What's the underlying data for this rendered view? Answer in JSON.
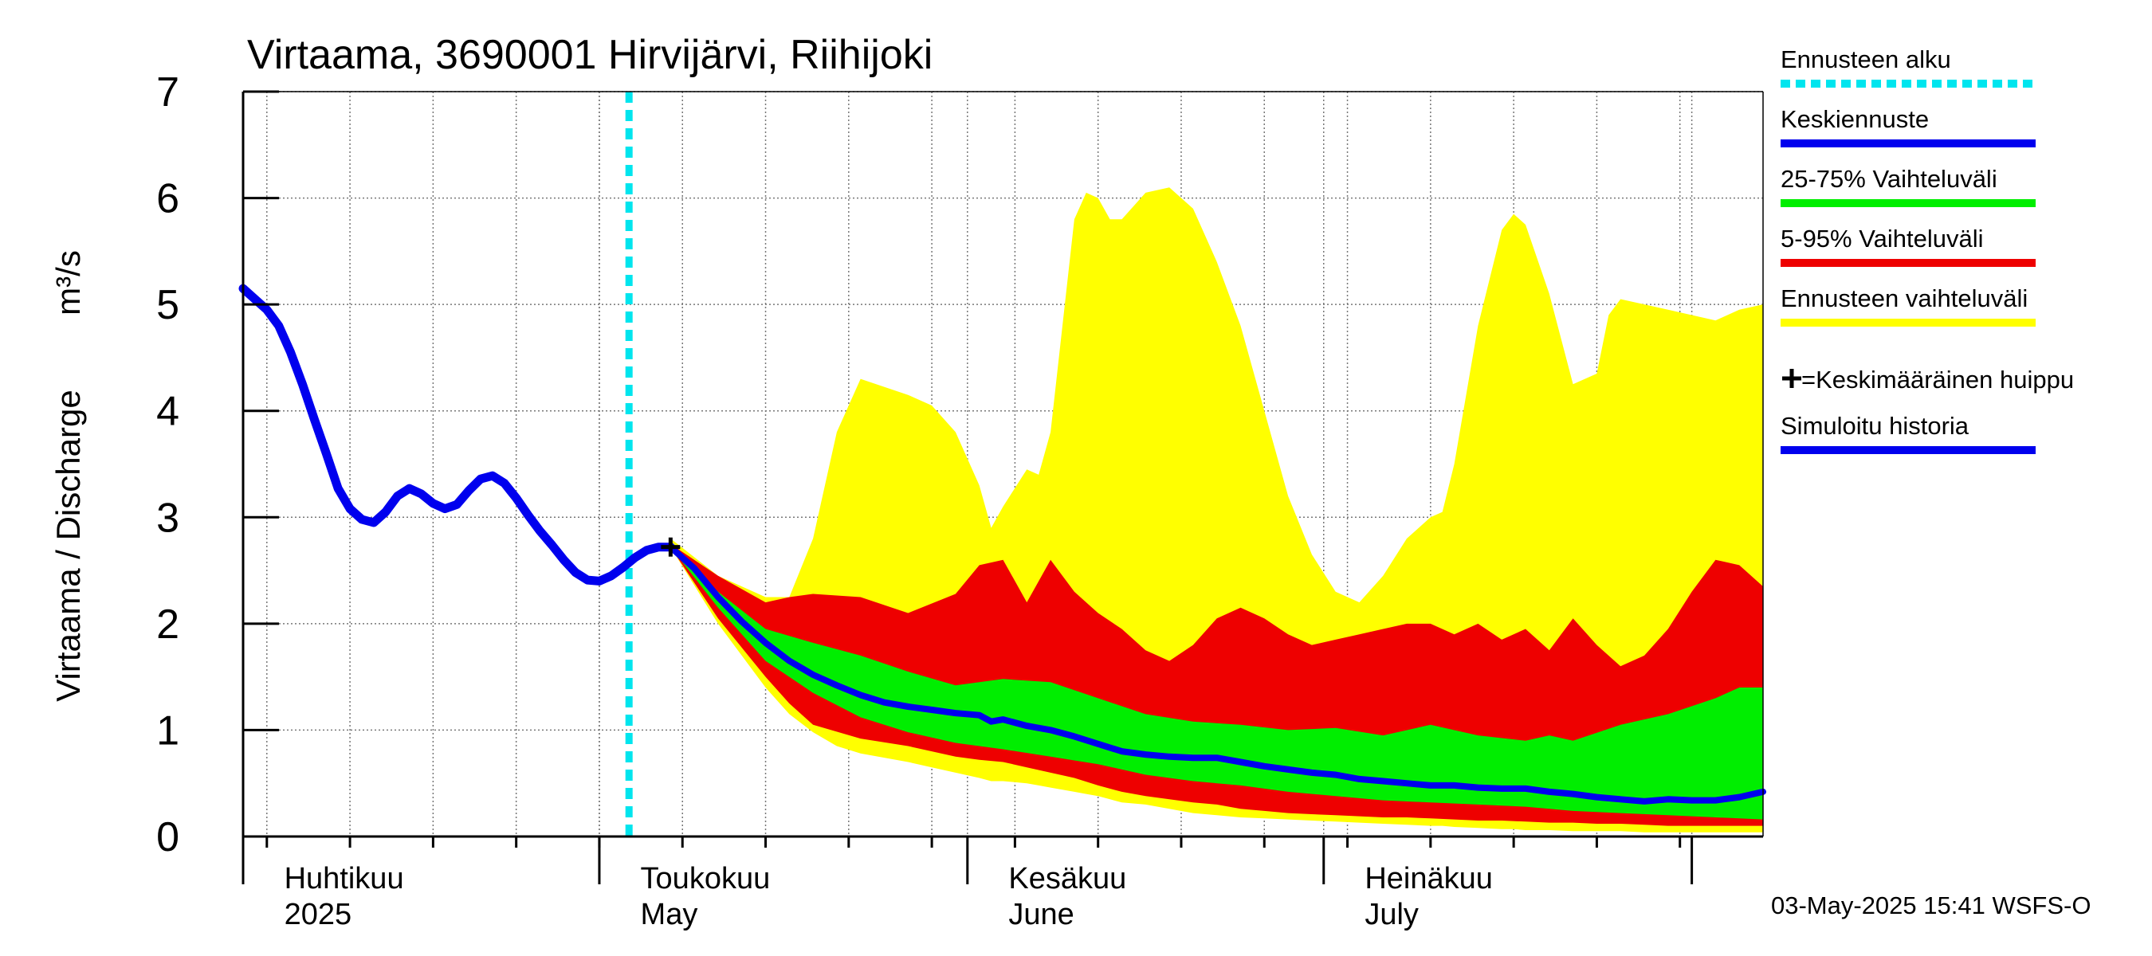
{
  "chart_data": {
    "type": "area",
    "title": "Virtaama, 3690001 Hirvijärvi, Riihijoki",
    "ylabel": "Virtaama / Discharge",
    "yunit": "m³/s",
    "ylim": [
      0,
      7
    ],
    "yticks": [
      0,
      1,
      2,
      3,
      4,
      5,
      6,
      7
    ],
    "xlim": [
      0,
      128
    ],
    "grid": true,
    "x_unit": "days since 2025-03-28",
    "forecast_start_x": 32.5,
    "month_ticks": [
      {
        "x": 4,
        "fi": "Huhtikuu",
        "en": "2025"
      },
      {
        "x": 34,
        "fi": "Toukokuu",
        "en": "May"
      },
      {
        "x": 65,
        "fi": "Kesäkuu",
        "en": "June"
      },
      {
        "x": 95,
        "fi": "Heinäkuu",
        "en": "July"
      }
    ],
    "legend_position": "right",
    "legend": [
      {
        "key": "forecast_start",
        "label": "Ennusteen alku",
        "color": "#00e5ee",
        "style": "dotted"
      },
      {
        "key": "mean",
        "label": "Keskiennuste",
        "color": "#0000ee",
        "style": "line"
      },
      {
        "key": "p25_75",
        "label": "25-75% Vaihteluväli",
        "color": "#00ee00",
        "style": "line"
      },
      {
        "key": "p5_95",
        "label": "5-95% Vaihteluväli",
        "color": "#ee0000",
        "style": "line"
      },
      {
        "key": "range",
        "label": "Ennusteen vaihteluväli",
        "color": "#ffff00",
        "style": "line"
      },
      {
        "key": "peak",
        "label": "=Keskimääräinen huippu",
        "color": "#000000",
        "style": "marker"
      },
      {
        "key": "history",
        "label": "Simuloitu historia",
        "color": "#0000ee",
        "style": "line"
      }
    ],
    "peak_marker": {
      "x": 36,
      "y": 2.72
    },
    "series": {
      "history": {
        "x": [
          0,
          1,
          2,
          3,
          4,
          5,
          6,
          7,
          8,
          9,
          10,
          11,
          12,
          13,
          14,
          15,
          16,
          17,
          18,
          19,
          20,
          21,
          22,
          23,
          24,
          25,
          26,
          27,
          28,
          29,
          30,
          31,
          32,
          33,
          34,
          35,
          36
        ],
        "values": [
          5.15,
          5.05,
          4.95,
          4.8,
          4.55,
          4.25,
          3.92,
          3.6,
          3.27,
          3.08,
          2.98,
          2.95,
          3.05,
          3.2,
          3.27,
          3.22,
          3.13,
          3.08,
          3.12,
          3.25,
          3.36,
          3.39,
          3.32,
          3.18,
          3.02,
          2.87,
          2.74,
          2.6,
          2.48,
          2.41,
          2.4,
          2.45,
          2.53,
          2.62,
          2.69,
          2.72,
          2.72
        ]
      },
      "mean": {
        "x": [
          36,
          38,
          40,
          42,
          44,
          46,
          48,
          50,
          52,
          54,
          56,
          58,
          60,
          62,
          63,
          64,
          66,
          68,
          70,
          72,
          74,
          76,
          78,
          80,
          82,
          84,
          86,
          88,
          90,
          92,
          94,
          96,
          98,
          100,
          102,
          104,
          106,
          108,
          110,
          112,
          114,
          116,
          118,
          120,
          122,
          124,
          126,
          128
        ],
        "values": [
          2.72,
          2.52,
          2.25,
          2.02,
          1.82,
          1.65,
          1.52,
          1.42,
          1.33,
          1.26,
          1.22,
          1.19,
          1.16,
          1.14,
          1.08,
          1.1,
          1.04,
          1.0,
          0.94,
          0.87,
          0.8,
          0.77,
          0.75,
          0.74,
          0.74,
          0.7,
          0.66,
          0.63,
          0.6,
          0.58,
          0.54,
          0.52,
          0.5,
          0.48,
          0.48,
          0.46,
          0.45,
          0.45,
          0.42,
          0.4,
          0.37,
          0.35,
          0.33,
          0.35,
          0.34,
          0.34,
          0.37,
          0.42
        ]
      },
      "p25_75": {
        "x": [
          36,
          40,
          44,
          48,
          52,
          56,
          60,
          64,
          68,
          72,
          76,
          80,
          84,
          88,
          92,
          96,
          100,
          104,
          108,
          110,
          112,
          116,
          120,
          124,
          126,
          128
        ],
        "upper": [
          2.72,
          2.3,
          1.95,
          1.82,
          1.7,
          1.55,
          1.42,
          1.48,
          1.45,
          1.3,
          1.15,
          1.08,
          1.05,
          1.0,
          1.02,
          0.95,
          1.05,
          0.95,
          0.9,
          0.95,
          0.9,
          1.05,
          1.15,
          1.3,
          1.4,
          1.4
        ],
        "lower": [
          2.72,
          2.15,
          1.65,
          1.35,
          1.12,
          0.98,
          0.88,
          0.82,
          0.75,
          0.68,
          0.58,
          0.52,
          0.48,
          0.42,
          0.38,
          0.34,
          0.32,
          0.3,
          0.28,
          0.26,
          0.24,
          0.22,
          0.2,
          0.18,
          0.17,
          0.16
        ]
      },
      "p5_95": {
        "x": [
          36,
          40,
          44,
          46,
          48,
          52,
          56,
          60,
          62,
          64,
          66,
          68,
          70,
          72,
          74,
          76,
          78,
          80,
          82,
          84,
          86,
          88,
          90,
          92,
          94,
          96,
          98,
          100,
          102,
          104,
          106,
          108,
          110,
          112,
          114,
          116,
          118,
          120,
          122,
          124,
          126,
          128
        ],
        "upper": [
          2.75,
          2.45,
          2.2,
          2.25,
          2.28,
          2.25,
          2.1,
          2.28,
          2.55,
          2.6,
          2.2,
          2.6,
          2.3,
          2.1,
          1.95,
          1.75,
          1.65,
          1.8,
          2.05,
          2.15,
          2.05,
          1.9,
          1.8,
          1.85,
          1.9,
          1.95,
          2.0,
          2.0,
          1.9,
          2.0,
          1.85,
          1.95,
          1.75,
          2.05,
          1.8,
          1.6,
          1.7,
          1.95,
          2.3,
          2.6,
          2.55,
          2.35
        ],
        "lower": [
          2.72,
          2.05,
          1.5,
          1.25,
          1.05,
          0.92,
          0.85,
          0.75,
          0.72,
          0.7,
          0.65,
          0.6,
          0.55,
          0.48,
          0.42,
          0.38,
          0.35,
          0.32,
          0.3,
          0.26,
          0.24,
          0.22,
          0.21,
          0.2,
          0.19,
          0.18,
          0.18,
          0.17,
          0.16,
          0.15,
          0.15,
          0.14,
          0.13,
          0.13,
          0.12,
          0.12,
          0.11,
          0.1,
          0.1,
          0.1,
          0.1,
          0.1
        ]
      },
      "range": {
        "x": [
          36,
          40,
          44,
          46,
          48,
          50,
          52,
          56,
          58,
          60,
          62,
          63,
          64,
          66,
          67,
          68,
          70,
          71,
          72,
          73,
          74,
          76,
          78,
          80,
          82,
          84,
          86,
          88,
          90,
          92,
          94,
          96,
          98,
          100,
          101,
          102,
          104,
          106,
          107,
          108,
          110,
          112,
          114,
          115,
          116,
          118,
          120,
          122,
          124,
          126,
          128
        ],
        "upper": [
          2.8,
          2.45,
          2.25,
          2.25,
          2.8,
          3.8,
          4.3,
          4.15,
          4.05,
          3.8,
          3.3,
          2.9,
          3.1,
          3.45,
          3.4,
          3.8,
          5.8,
          6.05,
          6.0,
          5.8,
          5.8,
          6.05,
          6.1,
          5.9,
          5.4,
          4.8,
          4.0,
          3.2,
          2.65,
          2.3,
          2.2,
          2.45,
          2.8,
          3.0,
          3.05,
          3.5,
          4.8,
          5.7,
          5.85,
          5.75,
          5.1,
          4.25,
          4.35,
          4.9,
          5.05,
          5.0,
          4.95,
          4.9,
          4.85,
          4.95,
          5.0
        ],
        "lower": [
          2.72,
          2.0,
          1.4,
          1.15,
          0.98,
          0.85,
          0.78,
          0.7,
          0.65,
          0.6,
          0.55,
          0.52,
          0.52,
          0.5,
          0.48,
          0.46,
          0.42,
          0.4,
          0.38,
          0.35,
          0.32,
          0.3,
          0.26,
          0.22,
          0.2,
          0.18,
          0.17,
          0.16,
          0.15,
          0.14,
          0.13,
          0.12,
          0.11,
          0.1,
          0.1,
          0.09,
          0.08,
          0.07,
          0.07,
          0.06,
          0.06,
          0.05,
          0.05,
          0.05,
          0.05,
          0.04,
          0.04,
          0.04,
          0.04,
          0.04,
          0.04
        ]
      }
    }
  },
  "footer": {
    "timestamp": "03-May-2025 15:41 WSFS-O"
  }
}
